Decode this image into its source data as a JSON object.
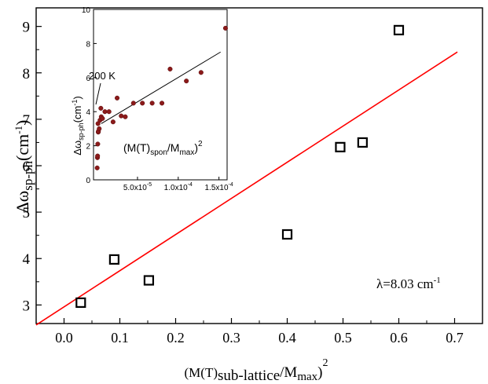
{
  "chart_data": [
    {
      "type": "scatter",
      "xlabel": "(M(T)sub-lattice/Mmax)2",
      "ylabel": "Δωsp-ph(cm-1)",
      "xlim": [
        -0.05,
        0.75
      ],
      "ylim": [
        2.6,
        9.4
      ],
      "x_ticks": [
        "0.0",
        "0.1",
        "0.2",
        "0.3",
        "0.4",
        "0.5",
        "0.6",
        "0.7"
      ],
      "y_ticks": [
        "3",
        "4",
        "5",
        "6",
        "7",
        "8",
        "9"
      ],
      "series": [
        {
          "marker": "open-square",
          "color": "#000000",
          "x": [
            0.03,
            0.09,
            0.152,
            0.4,
            0.495,
            0.535,
            0.6
          ],
          "y": [
            3.05,
            3.98,
            3.53,
            4.52,
            6.4,
            6.5,
            8.92
          ]
        }
      ],
      "fit_line": {
        "color": "#ff0000",
        "x": [
          -0.05,
          0.705
        ],
        "y": [
          2.57,
          8.45
        ]
      },
      "annotation": "λ=8.03 cm-1",
      "grid": false
    },
    {
      "type": "scatter",
      "position": "inset-top-left",
      "xlabel": "",
      "ylabel": "Δωsp-ph(cm-1)",
      "xlim": [
        -4e-06,
        0.00016
      ],
      "ylim": [
        0,
        10
      ],
      "x_ticks": [
        "5.0x10-5",
        "1.0x10-4",
        "1.5x10-4"
      ],
      "y_ticks": [
        "0",
        "2",
        "4",
        "6",
        "8",
        "10"
      ],
      "annotations": [
        "200 K",
        "(M(T)spon/Mmax)2"
      ],
      "series": [
        {
          "marker": "filled-circle",
          "color": "#8b1a1a",
          "x": [
            5e-07,
            8e-07,
            1e-06,
            1.2e-06,
            1.5e-06,
            1.8e-06,
            2e-06,
            3e-06,
            4e-06,
            5e-06,
            5.5e-06,
            7e-06,
            1e-05,
            1.5e-05,
            2e-05,
            2.5e-05,
            3e-05,
            3.5e-05,
            4.5e-05,
            5.6e-05,
            6.8e-05,
            8e-05,
            9e-05,
            0.00011,
            0.000128,
            0.000158
          ],
          "y": [
            0.7,
            1.3,
            1.4,
            2.1,
            3.3,
            2.8,
            2.85,
            3.0,
            3.5,
            4.2,
            3.7,
            3.6,
            4.0,
            4.0,
            3.4,
            4.8,
            3.75,
            3.7,
            4.5,
            4.5,
            4.5,
            4.5,
            6.5,
            5.8,
            6.3,
            8.9
          ]
        }
      ],
      "fit_line": {
        "color": "#000000",
        "x": [
          5.5e-06,
          0.000152
        ],
        "y": [
          3.3,
          7.5
        ]
      },
      "grid": false
    }
  ]
}
